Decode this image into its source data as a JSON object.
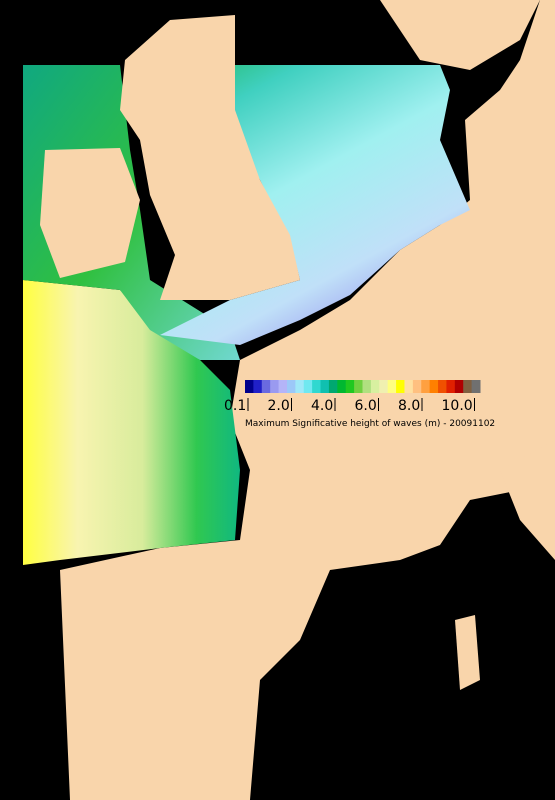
{
  "map": {
    "legend": {
      "colors": [
        "#00008b",
        "#2020c8",
        "#6a6ae0",
        "#9a9af0",
        "#b4b4f8",
        "#9cc8f8",
        "#a0e8f8",
        "#70e8f0",
        "#30d8d0",
        "#10c0b0",
        "#00a870",
        "#00b830",
        "#20c820",
        "#70d040",
        "#b0e080",
        "#d8f0a0",
        "#f0f0b0",
        "#ffff80",
        "#ffff00",
        "#ffe0a0",
        "#ffc080",
        "#ffa040",
        "#ff8000",
        "#f05000",
        "#e02000",
        "#b00000",
        "#806040",
        "#707070"
      ],
      "labels": [
        "0.1",
        "2.0",
        "4.0",
        "6.0",
        "8.0",
        "10.0"
      ],
      "caption": "Maximum Significative height of waves (m) - 20091102"
    }
  }
}
